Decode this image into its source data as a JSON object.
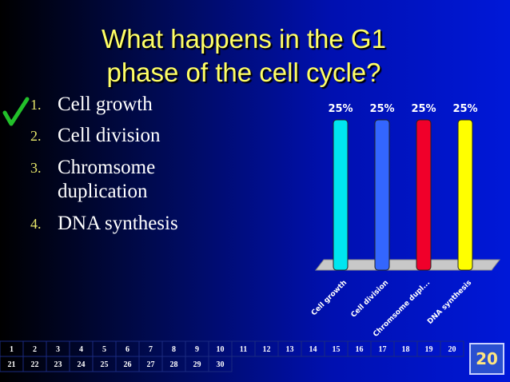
{
  "slide": {
    "title": "What happens in the G1 phase of the cell cycle?",
    "options": [
      {
        "number": "1.",
        "text": "Cell growth"
      },
      {
        "number": "2.",
        "text": "Cell division"
      },
      {
        "number": "3.",
        "text": "Chromsome duplication"
      },
      {
        "number": "4.",
        "text": "DNA synthesis"
      }
    ]
  },
  "chart_data": {
    "type": "bar",
    "categories": [
      "Cell growth",
      "Cell division",
      "Chromsome dupl...",
      "DNA synthesis"
    ],
    "values": [
      25,
      25,
      25,
      25
    ],
    "value_labels": [
      "25%",
      "25%",
      "25%",
      "25%"
    ],
    "colors": [
      "#00e6f0",
      "#3366ff",
      "#f0002a",
      "#ffff00"
    ]
  },
  "responses": {
    "cells": [
      1,
      2,
      3,
      4,
      5,
      6,
      7,
      8,
      9,
      10,
      11,
      12,
      13,
      14,
      15,
      16,
      17,
      18,
      19,
      20,
      21,
      22,
      23,
      24,
      25,
      26,
      27,
      28,
      29,
      30
    ],
    "countdown": 20
  }
}
